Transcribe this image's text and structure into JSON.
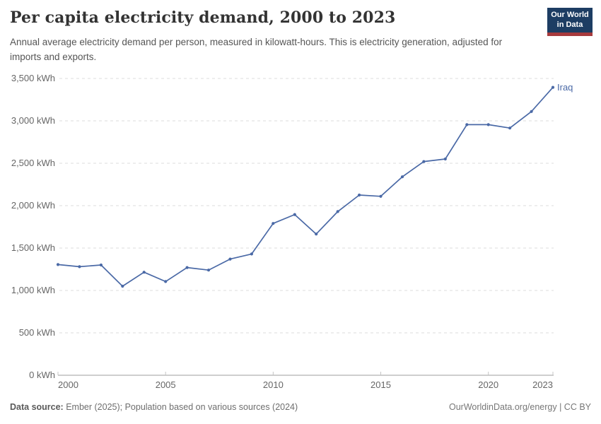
{
  "header": {
    "title": "Per capita electricity demand, 2000 to 2023",
    "subtitle": "Annual average electricity demand per person, measured in kilowatt-hours. This is electricity generation, adjusted for imports and exports."
  },
  "logo": {
    "line1": "Our World",
    "line2": "in Data",
    "bg_color": "#1d3d63",
    "stripe_color": "#a73a3d"
  },
  "chart_data": {
    "type": "line",
    "title": "Per capita electricity demand, 2000 to 2023",
    "unit": "kWh",
    "x": [
      2000,
      2001,
      2002,
      2003,
      2004,
      2005,
      2006,
      2007,
      2008,
      2009,
      2010,
      2011,
      2012,
      2013,
      2014,
      2015,
      2016,
      2017,
      2018,
      2019,
      2020,
      2021,
      2022,
      2023
    ],
    "series": [
      {
        "name": "Iraq",
        "color": "#4a69a6",
        "values": [
          1305,
          1280,
          1300,
          1050,
          1215,
          1105,
          1270,
          1240,
          1370,
          1430,
          1790,
          1895,
          1665,
          1930,
          2125,
          2110,
          2340,
          2520,
          2550,
          2955,
          2955,
          2915,
          3110,
          3395
        ]
      }
    ],
    "xlim": [
      2000,
      2023
    ],
    "ylim": [
      0,
      3500
    ],
    "yticks": [
      0,
      500,
      1000,
      1500,
      2000,
      2500,
      3000,
      3500
    ],
    "ytick_suffix": " kWh",
    "xticks": [
      2000,
      2005,
      2010,
      2015,
      2020,
      2023
    ],
    "grid": "horizontal-dashed",
    "grid_color": "#dcdcdc",
    "axis_color": "#9e9e9e",
    "tick_color": "#c4c4c4",
    "label_color": "#666666",
    "legend_position": "end-of-line"
  },
  "footer": {
    "source_label": "Data source:",
    "source_text": " Ember (2025); Population based on various sources (2024)",
    "link": "OurWorldinData.org/energy | CC BY"
  }
}
